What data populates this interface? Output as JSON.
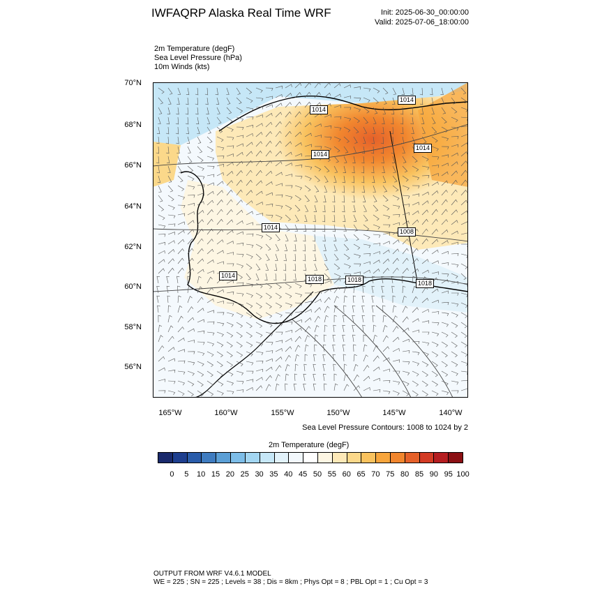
{
  "header": {
    "title": "IWFAQRP Alaska Real Time WRF",
    "init": "Init: 2025-06-30_00:00:00",
    "valid": "Valid: 2025-07-06_18:00:00"
  },
  "variables": [
    "2m Temperature   (degF)",
    "Sea Level Pressure   (hPa)",
    "10m Winds   (kts)"
  ],
  "map": {
    "lat_labels": [
      "70°N",
      "68°N",
      "66°N",
      "64°N",
      "62°N",
      "60°N",
      "58°N",
      "56°N"
    ],
    "lon_labels": [
      "165°W",
      "160°W",
      "155°W",
      "150°W",
      "145°W",
      "140°W"
    ],
    "slp_labels": [
      "1014",
      "1014",
      "1014",
      "1014",
      "1014",
      "1014",
      "1008",
      "1018",
      "1018",
      "1018"
    ],
    "contour_note": "Sea Level Pressure Contours: 1008 to 1024 by 2"
  },
  "colorbar": {
    "title": "2m Temperature  (degF)",
    "labels": [
      "0",
      "5",
      "10",
      "15",
      "20",
      "25",
      "30",
      "35",
      "40",
      "45",
      "50",
      "55",
      "60",
      "65",
      "70",
      "75",
      "80",
      "85",
      "90",
      "95",
      "100"
    ],
    "colors": [
      "#1a2a6c",
      "#1e3f8f",
      "#2a5caa",
      "#3f7cc0",
      "#5b9fd6",
      "#7dbde8",
      "#a3d6f2",
      "#c6e7f7",
      "#e2f2fa",
      "#f2f8fc",
      "#ffffff",
      "#fdf6e3",
      "#fde9b8",
      "#fbd88a",
      "#f9c25e",
      "#f7a53c",
      "#f1862e",
      "#e5612a",
      "#d33b24",
      "#b51d20",
      "#8b1014"
    ]
  },
  "footer": {
    "line1": "OUTPUT FROM WRF V4.6.1 MODEL",
    "line2": "WE = 225 ; SN = 225 ; Levels = 38 ; Dis = 8km ; Phys Opt = 8 ; PBL Opt = 1 ; Cu Opt = 3"
  }
}
